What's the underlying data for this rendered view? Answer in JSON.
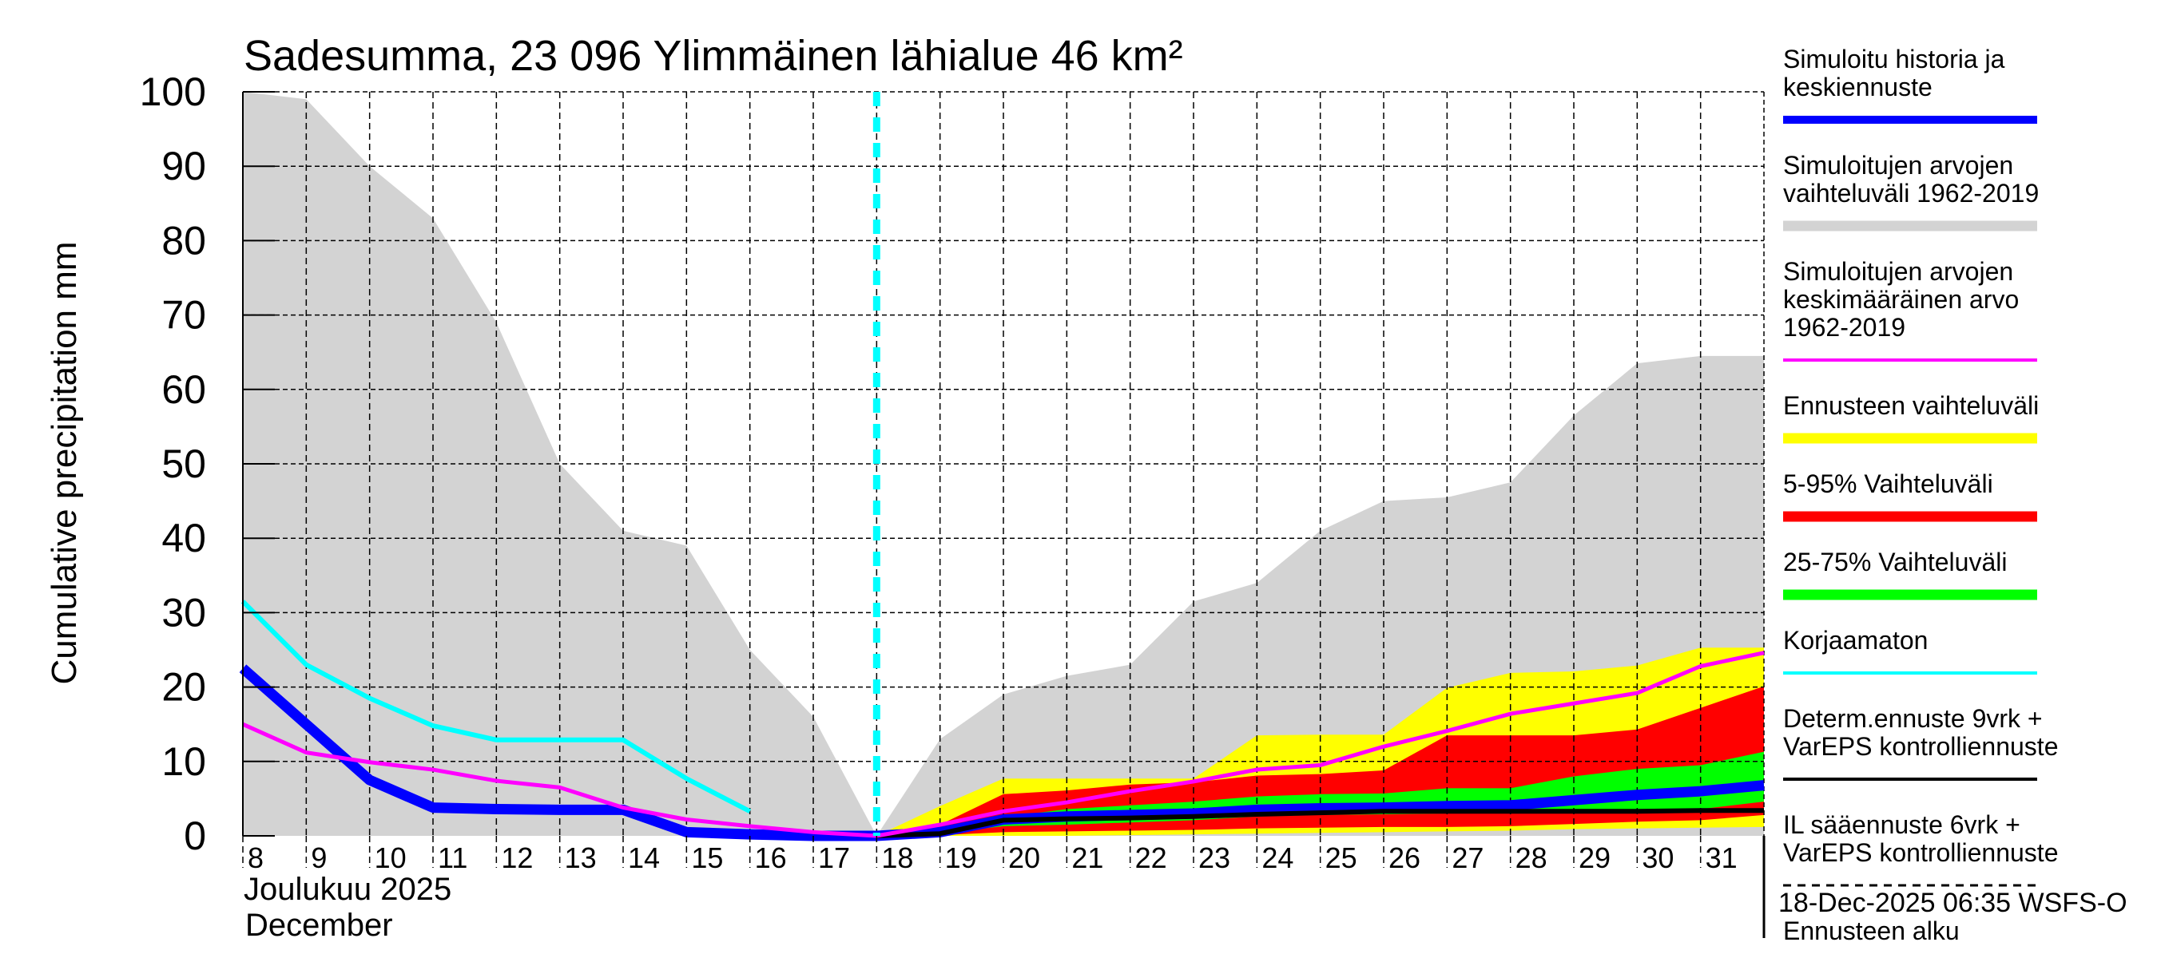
{
  "chart_data": {
    "type": "area",
    "title": "Sadesumma, 23 096 Ylimmäinen lähialue 46 km²",
    "ylabel": "Cumulative precipitation   mm",
    "xlabel_line1": "Joulukuu  2025",
    "xlabel_line2": "December",
    "ylim": [
      0,
      100
    ],
    "yticks": [
      "0",
      "10",
      "20",
      "30",
      "40",
      "50",
      "60",
      "70",
      "80",
      "90",
      "100"
    ],
    "xlim": [
      8,
      32
    ],
    "xticks": [
      "8",
      "9",
      "10",
      "11",
      "12",
      "13",
      "14",
      "15",
      "16",
      "17",
      "18",
      "19",
      "20",
      "21",
      "22",
      "23",
      "24",
      "25",
      "26",
      "27",
      "28",
      "29",
      "30",
      "31"
    ],
    "forecast_start_day": 18,
    "grid": true,
    "legend_position": "right",
    "series": [
      {
        "name": "hist_range_upper",
        "x": [
          8,
          9,
          10,
          11,
          12,
          13,
          14,
          15,
          16,
          17,
          18,
          19,
          20,
          21,
          22,
          23,
          24,
          25,
          26,
          27,
          28,
          29,
          30,
          31,
          32
        ],
        "values": [
          100,
          99,
          90,
          83,
          69,
          50,
          41,
          39,
          25,
          16,
          0,
          13,
          19,
          21.5,
          23,
          31.5,
          34,
          41,
          45,
          45.5,
          47.5,
          56.5,
          63.5,
          64.5,
          64.5
        ]
      },
      {
        "name": "ennuste_upper",
        "x": [
          18,
          19,
          20,
          21,
          22,
          23,
          24,
          25,
          26,
          27,
          28,
          29,
          30,
          31,
          32
        ],
        "values": [
          0,
          4,
          7.7,
          7.7,
          7.7,
          7.7,
          13.5,
          13.6,
          13.6,
          19.9,
          21.9,
          22.1,
          22.9,
          25.3,
          25.3
        ]
      },
      {
        "name": "p95",
        "x": [
          18,
          19,
          20,
          21,
          22,
          23,
          24,
          25,
          26,
          27,
          28,
          29,
          30,
          31,
          32
        ],
        "values": [
          0,
          1.5,
          5.6,
          6.1,
          6.9,
          7.2,
          8.1,
          8.3,
          8.8,
          13.5,
          13.5,
          13.5,
          14.3,
          17.2,
          20.1
        ]
      },
      {
        "name": "p75",
        "x": [
          18,
          19,
          20,
          21,
          22,
          23,
          24,
          25,
          26,
          27,
          28,
          29,
          30,
          31,
          32
        ],
        "values": [
          0,
          0.8,
          2.5,
          3.6,
          4.1,
          4.6,
          5.3,
          5.6,
          5.7,
          6.4,
          6.4,
          8.0,
          9.0,
          9.5,
          11.3
        ]
      },
      {
        "name": "p25",
        "x": [
          18,
          19,
          20,
          21,
          22,
          23,
          24,
          25,
          26,
          27,
          28,
          29,
          30,
          31,
          32
        ],
        "values": [
          0,
          0.3,
          1.3,
          1.5,
          1.8,
          2.1,
          2.6,
          2.8,
          2.9,
          3.0,
          3.1,
          3.2,
          3.4,
          3.6,
          4.6
        ]
      },
      {
        "name": "p5",
        "x": [
          18,
          19,
          20,
          21,
          22,
          23,
          24,
          25,
          26,
          27,
          28,
          29,
          30,
          31,
          32
        ],
        "values": [
          0,
          0.1,
          0.5,
          0.6,
          0.7,
          0.8,
          1.0,
          1.1,
          1.2,
          1.2,
          1.3,
          1.6,
          1.9,
          2.1,
          2.8
        ]
      },
      {
        "name": "ennuste_lower",
        "x": [
          18,
          19,
          20,
          21,
          22,
          23,
          24,
          25,
          26,
          27,
          28,
          29,
          30,
          31,
          32
        ],
        "values": [
          0,
          0,
          0,
          0,
          0.1,
          0.2,
          0.3,
          0.4,
          0.5,
          0.6,
          0.7,
          0.9,
          1.0,
          1.1,
          1.2
        ]
      },
      {
        "name": "Simuloitu historia ja keskiennuste",
        "x": [
          8,
          9,
          10,
          11,
          12,
          13,
          14,
          15,
          16,
          17,
          18,
          19,
          20,
          21,
          22,
          23,
          24,
          25,
          26,
          27,
          28,
          29,
          30,
          31,
          32
        ],
        "values": [
          22.5,
          15,
          7.5,
          3.8,
          3.6,
          3.5,
          3.5,
          0.5,
          0.2,
          0,
          0,
          0.5,
          2.2,
          2.6,
          2.8,
          3.0,
          3.5,
          3.7,
          3.8,
          4.0,
          4.1,
          4.8,
          5.5,
          6.0,
          6.8
        ]
      },
      {
        "name": "Simuloitujen arvojen keskimääräinen arvo 1962-2019",
        "x": [
          8,
          9,
          10,
          11,
          12,
          13,
          14,
          15,
          16,
          17,
          18,
          19,
          20,
          21,
          22,
          23,
          24,
          25,
          26,
          27,
          28,
          29,
          30,
          31,
          32
        ],
        "values": [
          15,
          11.2,
          9.9,
          8.9,
          7.4,
          6.5,
          3.8,
          2.2,
          1.3,
          0.5,
          0,
          1.5,
          3.3,
          4.5,
          6.0,
          7.3,
          8.9,
          9.5,
          12.0,
          14.1,
          16.4,
          17.8,
          19.2,
          22.8,
          24.6
        ]
      },
      {
        "name": "Korjaamaton",
        "x": [
          8,
          9,
          10,
          11,
          12,
          13,
          14,
          15,
          16
        ],
        "values": [
          31.5,
          23,
          18.5,
          14.8,
          12.9,
          12.9,
          12.9,
          7.7,
          3.3
        ]
      },
      {
        "name": "Determ.ennuste 9vrk + VarEPS kontrolliennuste",
        "x": [
          18,
          19,
          20,
          21,
          22,
          23,
          24,
          25,
          26,
          27,
          28,
          29,
          30,
          31,
          32
        ],
        "values": [
          0,
          0.3,
          2.1,
          2.3,
          2.4,
          2.6,
          2.9,
          3.1,
          3.3,
          3.3,
          3.3,
          3.3,
          3.3,
          3.4,
          3.4
        ]
      }
    ],
    "colors": {
      "hist_range": "#d3d3d3",
      "ennuste": "#ffff00",
      "p5_95": "#ff0000",
      "p25_75": "#00ff00",
      "simuloitu": "#0000ff",
      "keskiarvo": "#ff00ff",
      "korjaamaton": "#00ffff",
      "determ": "#000000"
    }
  },
  "legend": [
    {
      "lines": [
        "Simuloitu historia ja",
        "keskiennuste"
      ],
      "color": "#0000ff",
      "style": "thick"
    },
    {
      "lines": [
        "Simuloitujen arvojen",
        "vaihteluväli 1962-2019"
      ],
      "color": "#d3d3d3",
      "style": "band"
    },
    {
      "lines": [
        "Simuloitujen arvojen",
        "keskimääräinen arvo",
        "   1962-2019"
      ],
      "color": "#ff00ff",
      "style": "thin"
    },
    {
      "lines": [
        "Ennusteen vaihteluväli"
      ],
      "color": "#ffff00",
      "style": "band"
    },
    {
      "lines": [
        "5-95% Vaihteluväli"
      ],
      "color": "#ff0000",
      "style": "band"
    },
    {
      "lines": [
        "25-75% Vaihteluväli"
      ],
      "color": "#00ff00",
      "style": "band"
    },
    {
      "lines": [
        "Korjaamaton"
      ],
      "color": "#00ffff",
      "style": "thin"
    },
    {
      "lines": [
        "Determ.ennuste 9vrk +",
        "VarEPS kontrolliennuste"
      ],
      "color": "#000000",
      "style": "thin"
    },
    {
      "lines": [
        "IL sääennuste 6vrk  +",
        "  VarEPS kontrolliennuste"
      ],
      "color": "#000000",
      "style": "dashed"
    },
    {
      "lines": [
        "Ennusteen alku"
      ],
      "color": "#00ffff",
      "style": "dotted"
    }
  ],
  "footer": "18-Dec-2025 06:35 WSFS-O"
}
